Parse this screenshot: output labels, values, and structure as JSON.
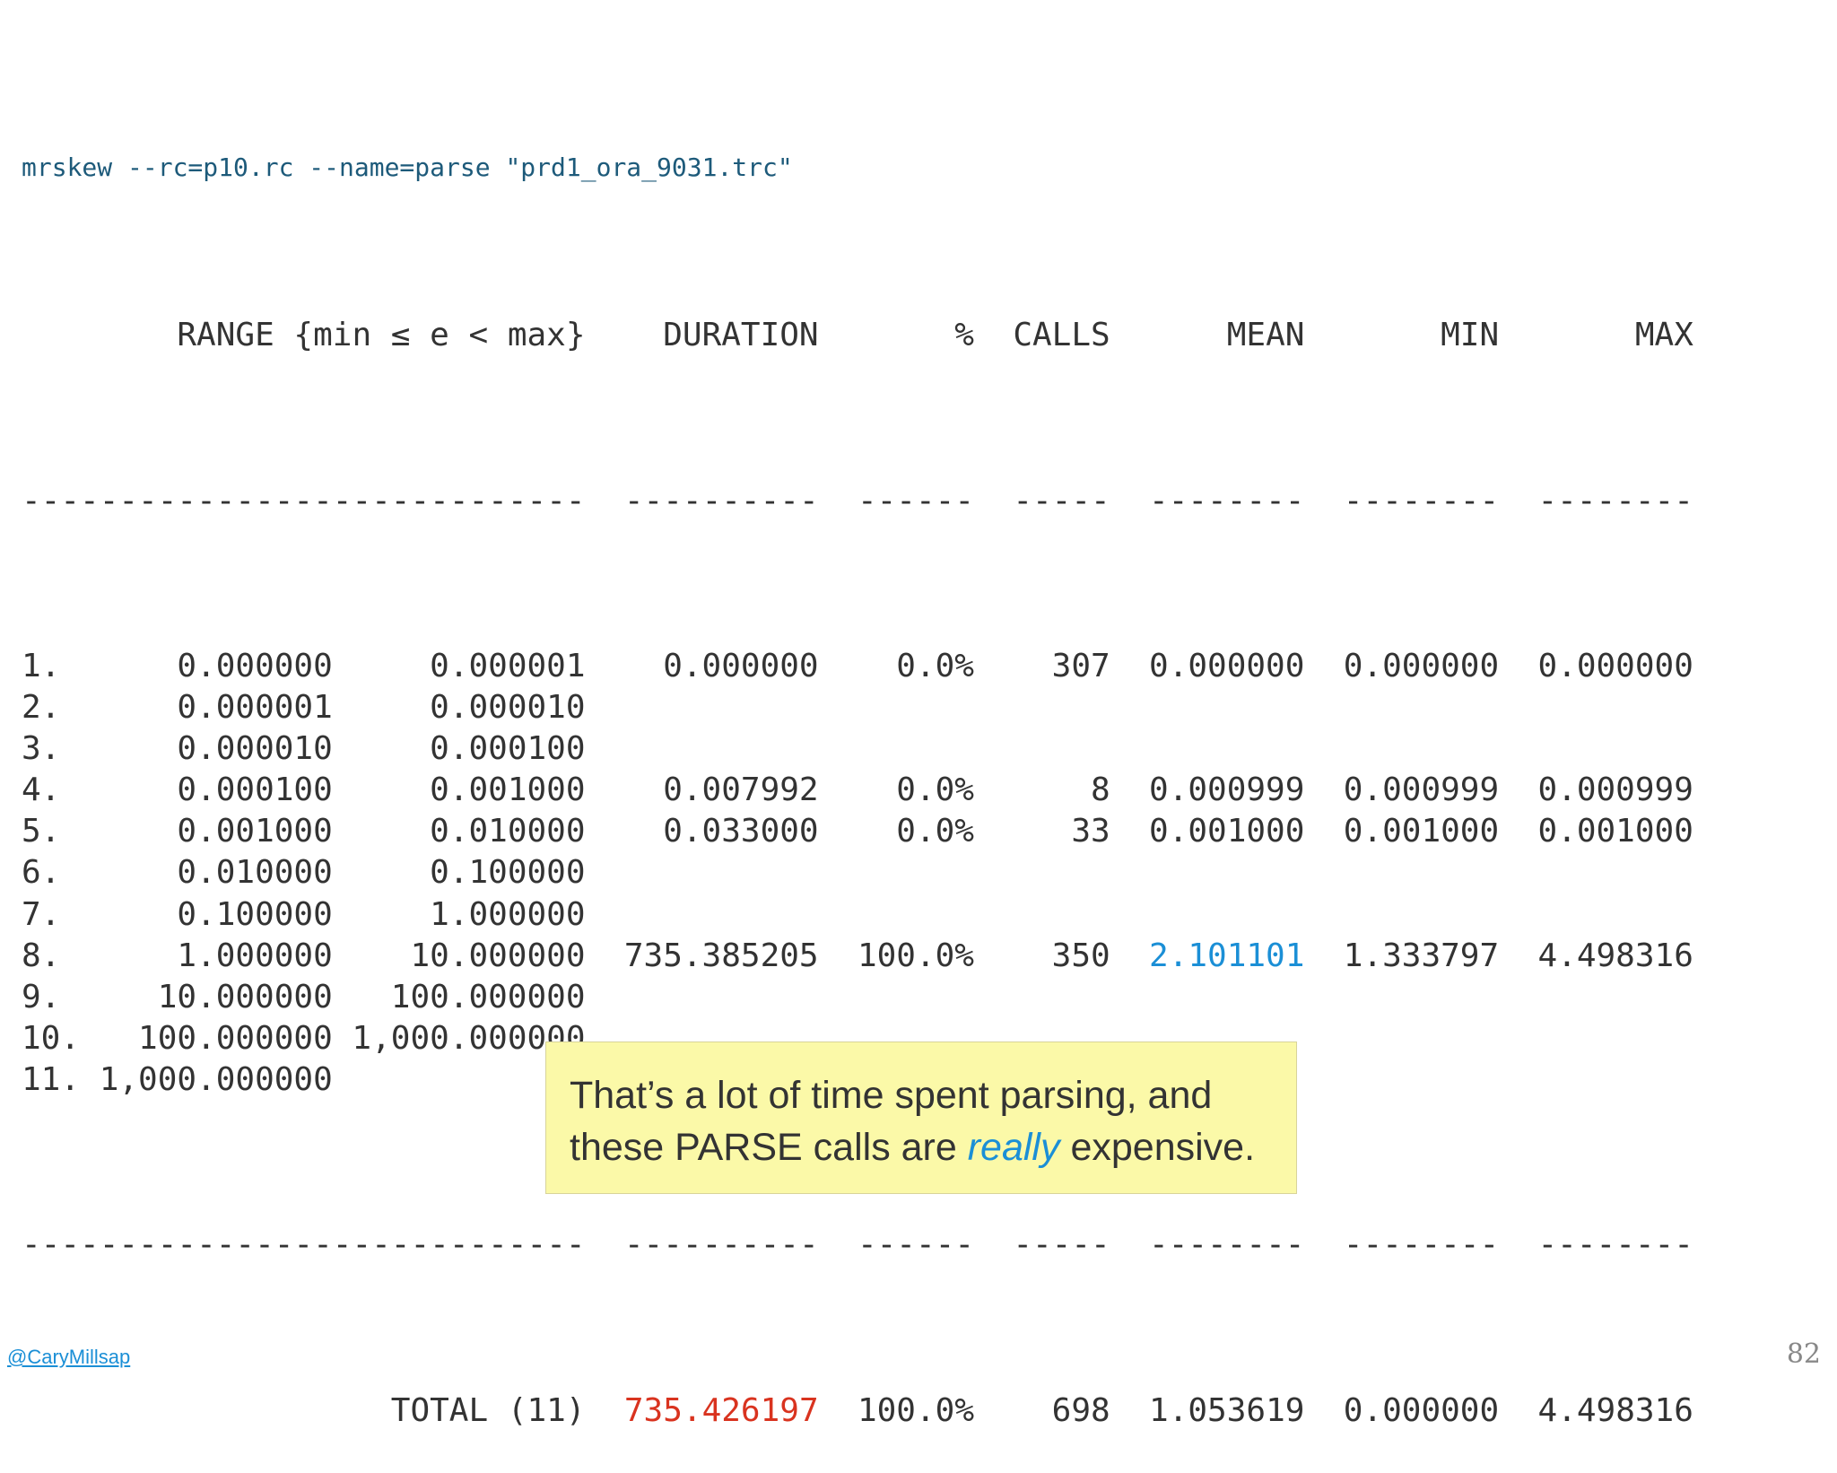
{
  "command": "mrskew --rc=p10.rc --name=parse \"prd1_ora_9031.trc\"",
  "headers": {
    "range": "RANGE {min ≤ e < max}",
    "duration": "DURATION",
    "pct": "%",
    "calls": "CALLS",
    "mean": "MEAN",
    "min": "MIN",
    "max": "MAX"
  },
  "separator": {
    "range": "-----------------------------",
    "duration": "----------",
    "pct": "------",
    "calls": "-----",
    "mean": "--------",
    "min": "--------",
    "max": "--------"
  },
  "rows": [
    {
      "num": "1.",
      "lo": "0.000000",
      "hi": "0.000001",
      "duration": "0.000000",
      "pct": "0.0%",
      "calls": "307",
      "mean": "0.000000",
      "min": "0.000000",
      "max": "0.000000"
    },
    {
      "num": "2.",
      "lo": "0.000001",
      "hi": "0.000010",
      "duration": "",
      "pct": "",
      "calls": "",
      "mean": "",
      "min": "",
      "max": ""
    },
    {
      "num": "3.",
      "lo": "0.000010",
      "hi": "0.000100",
      "duration": "",
      "pct": "",
      "calls": "",
      "mean": "",
      "min": "",
      "max": ""
    },
    {
      "num": "4.",
      "lo": "0.000100",
      "hi": "0.001000",
      "duration": "0.007992",
      "pct": "0.0%",
      "calls": "8",
      "mean": "0.000999",
      "min": "0.000999",
      "max": "0.000999"
    },
    {
      "num": "5.",
      "lo": "0.001000",
      "hi": "0.010000",
      "duration": "0.033000",
      "pct": "0.0%",
      "calls": "33",
      "mean": "0.001000",
      "min": "0.001000",
      "max": "0.001000"
    },
    {
      "num": "6.",
      "lo": "0.010000",
      "hi": "0.100000",
      "duration": "",
      "pct": "",
      "calls": "",
      "mean": "",
      "min": "",
      "max": ""
    },
    {
      "num": "7.",
      "lo": "0.100000",
      "hi": "1.000000",
      "duration": "",
      "pct": "",
      "calls": "",
      "mean": "",
      "min": "",
      "max": ""
    },
    {
      "num": "8.",
      "lo": "1.000000",
      "hi": "10.000000",
      "duration": "735.385205",
      "pct": "100.0%",
      "calls": "350",
      "mean": "2.101101",
      "min": "1.333797",
      "max": "4.498316"
    },
    {
      "num": "9.",
      "lo": "10.000000",
      "hi": "100.000000",
      "duration": "",
      "pct": "",
      "calls": "",
      "mean": "",
      "min": "",
      "max": ""
    },
    {
      "num": "10.",
      "lo": "100.000000",
      "hi": "1,000.000000",
      "duration": "",
      "pct": "",
      "calls": "",
      "mean": "",
      "min": "",
      "max": ""
    },
    {
      "num": "11.",
      "lo": "1,000.000000",
      "hi": "+∞",
      "duration": "",
      "pct": "",
      "calls": "",
      "mean": "",
      "min": "",
      "max": ""
    }
  ],
  "total": {
    "label": "TOTAL (11)",
    "duration": "735.426197",
    "pct": "100.0%",
    "calls": "698",
    "mean": "1.053619",
    "min": "0.000000",
    "max": "4.498316"
  },
  "highlight_colors": {
    "total_duration": "#d9331f",
    "row8_mean": "#1b8fd6",
    "command": "#1d5a7a"
  },
  "callout": {
    "text_before": "That’s a lot of time spent parsing, and these PARSE calls are ",
    "emphasis": "really",
    "text_after": " expensive."
  },
  "footer": {
    "handle": "@CaryMillsap",
    "page_number": "82"
  }
}
